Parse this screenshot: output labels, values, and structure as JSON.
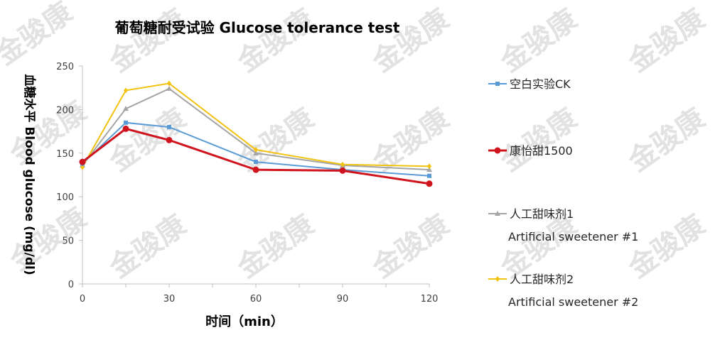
{
  "watermark": "金骏康",
  "chart_data": {
    "type": "line",
    "title": "葡萄糖耐受试验  Glucose tolerance test",
    "xlabel": "时间（min）",
    "ylabel": "血糖水平 Blood glucose (mg/dl)",
    "x": [
      0,
      15,
      30,
      60,
      90,
      120
    ],
    "x_ticks": [
      "0",
      "30",
      "60",
      "90",
      "120"
    ],
    "xlim": [
      0,
      120
    ],
    "ylim": [
      0,
      250
    ],
    "y_ticks": [
      "0",
      "50",
      "100",
      "150",
      "200",
      "250"
    ],
    "grid": false,
    "legend_position": "right",
    "series": [
      {
        "name": "空白实验CK",
        "name2": "",
        "color": "#5b9bd5",
        "marker": "square",
        "lineWidth": 2,
        "values": [
          138,
          185,
          180,
          140,
          131,
          124
        ]
      },
      {
        "name": "康怡甜1500",
        "name2": "",
        "color": "#d0141e",
        "marker": "circle",
        "lineWidth": 3,
        "values": [
          140,
          178,
          165,
          131,
          130,
          115
        ]
      },
      {
        "name": "人工甜味剂1",
        "name2": "Artificial sweetener #1",
        "color": "#a5a5a5",
        "marker": "triangle",
        "lineWidth": 2,
        "values": [
          136,
          201,
          224,
          150,
          136,
          131
        ]
      },
      {
        "name": "人工甜味剂2",
        "name2": "Artificial sweetener #2",
        "color": "#f2c211",
        "marker": "diamond",
        "lineWidth": 2,
        "values": [
          134,
          222,
          230,
          154,
          137,
          135
        ]
      }
    ]
  }
}
